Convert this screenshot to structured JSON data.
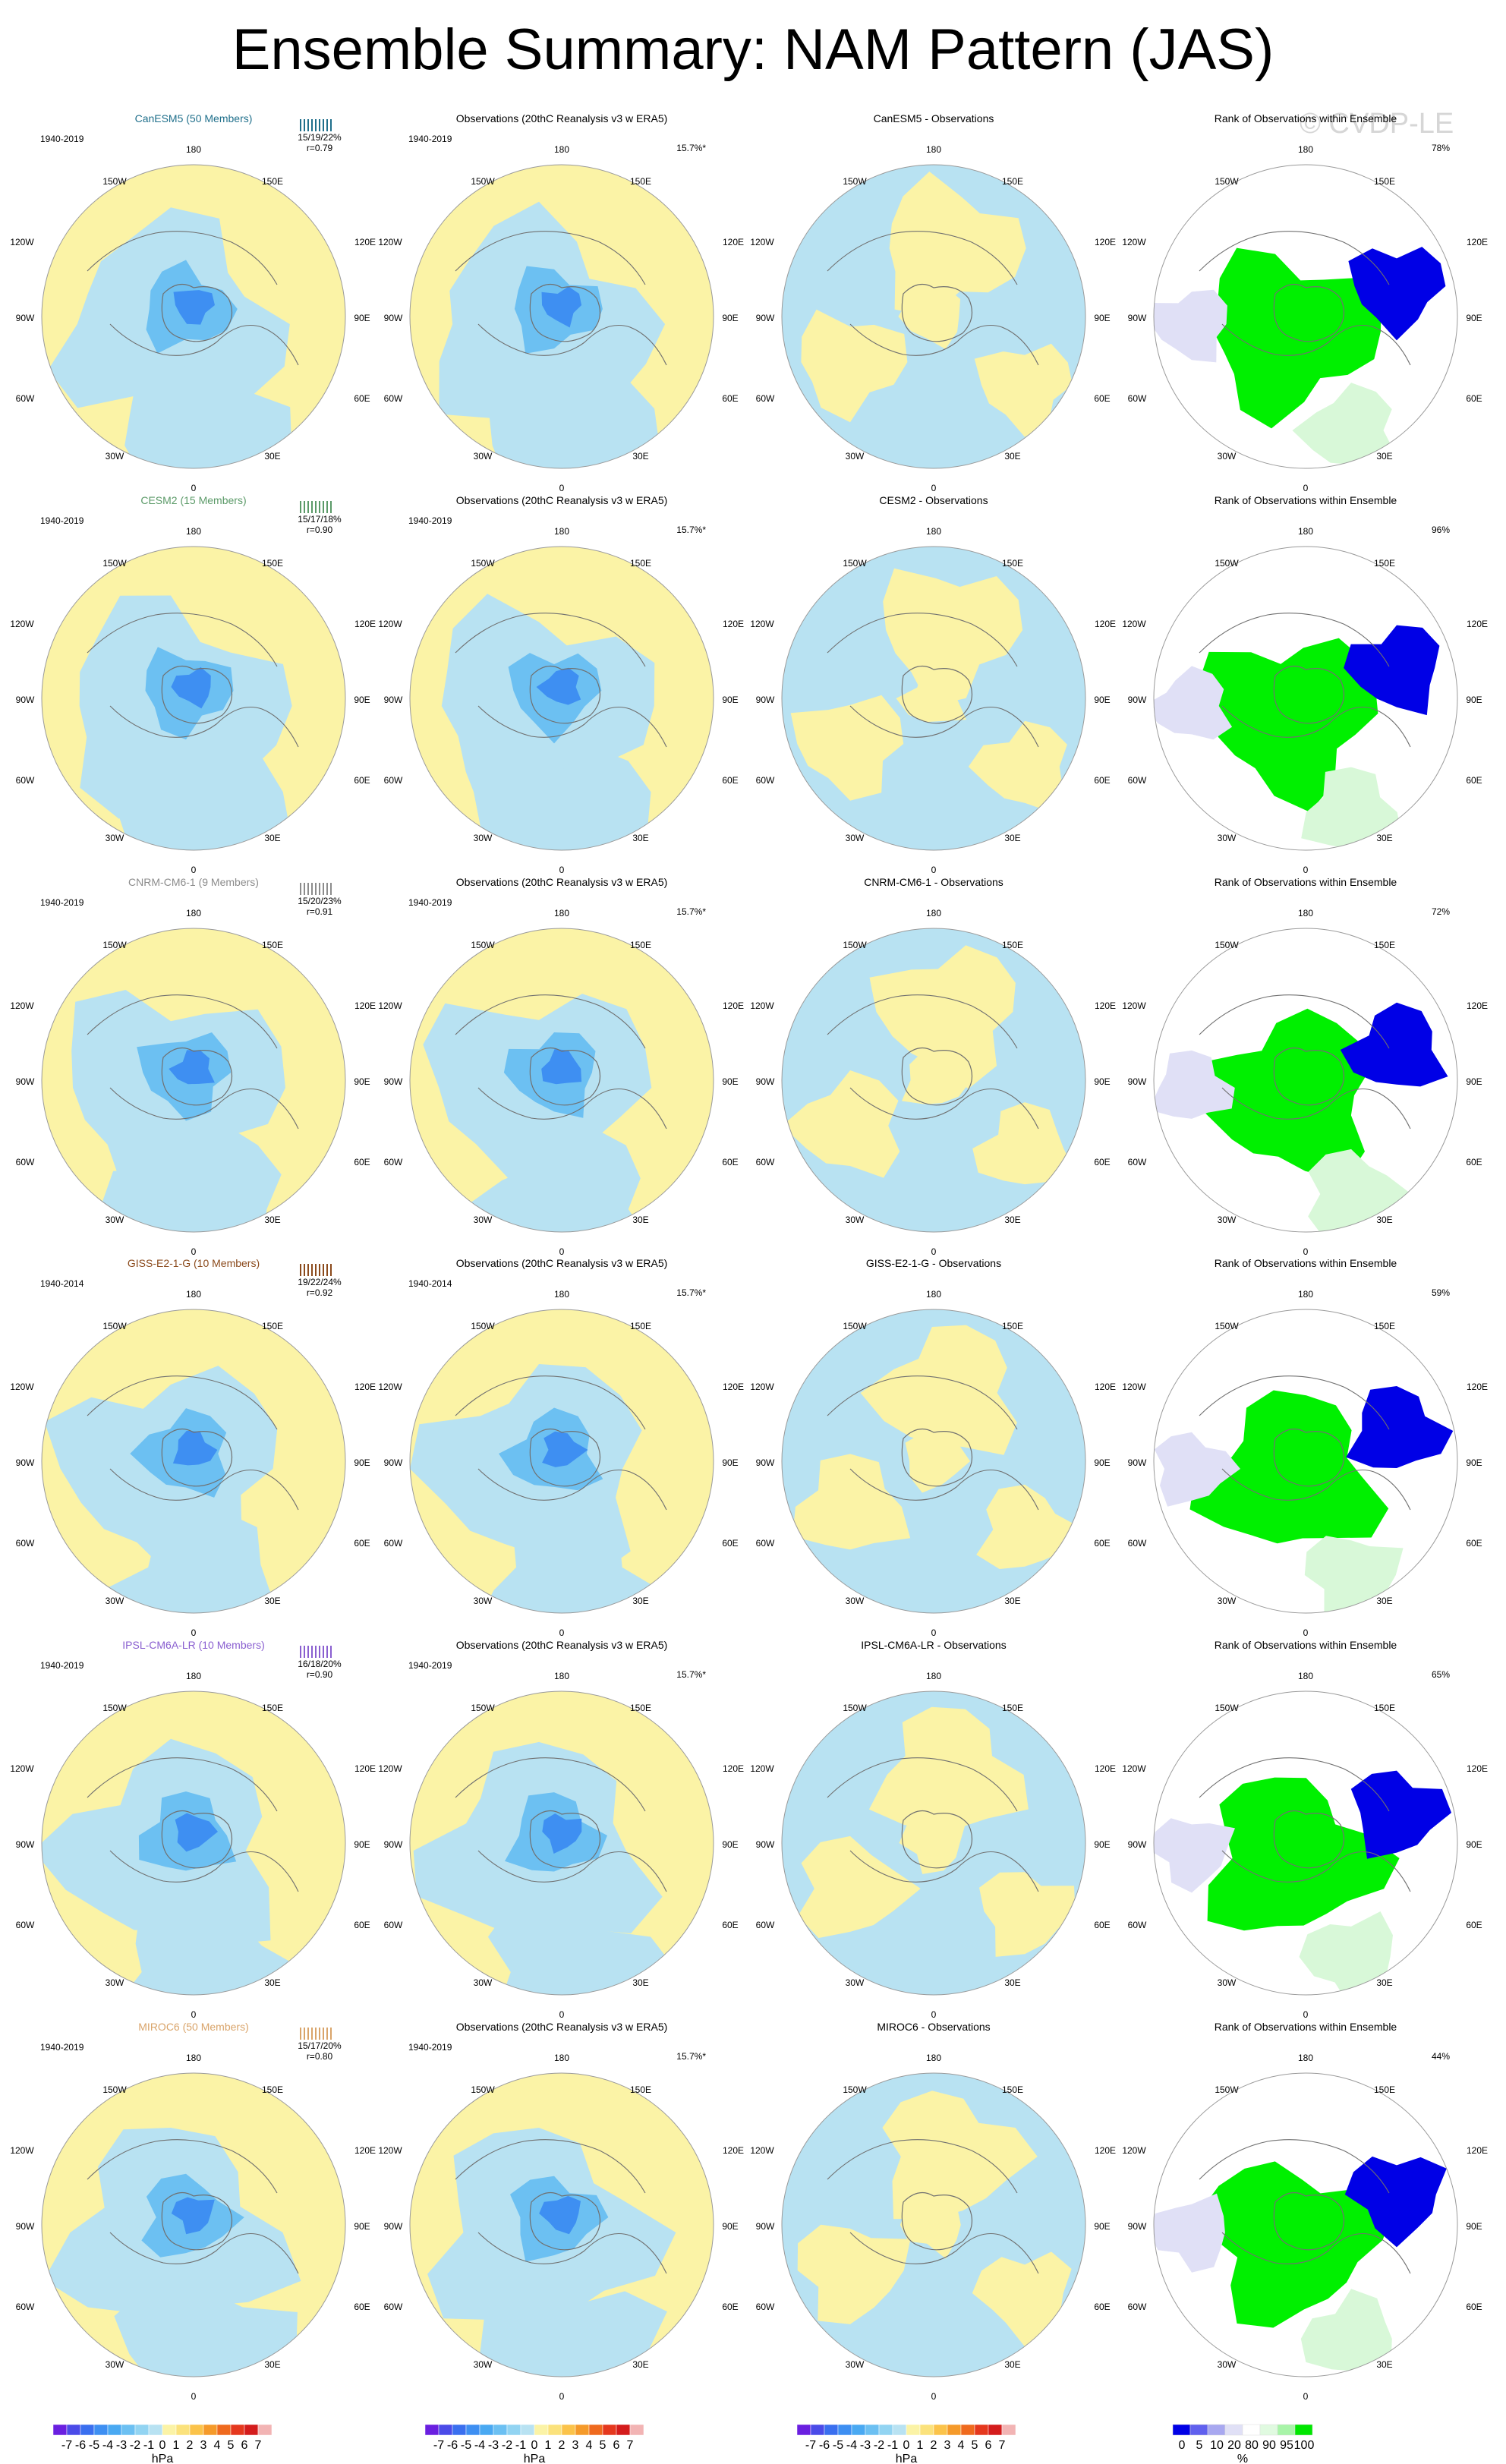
{
  "title": "Ensemble Summary: NAM Pattern (JAS)",
  "watermark": "© CVDP-LE",
  "lon_labels": {
    "top": "180",
    "bottom": "0",
    "upper_left": "150W",
    "upper_right": "150E",
    "mid_upper_left": "120W",
    "mid_upper_right": "120E",
    "left": "90W",
    "right": "90E",
    "mid_lower_left": "60W",
    "mid_lower_right": "60E",
    "lower_left": "30W",
    "lower_right": "30E"
  },
  "rows": [
    {
      "model": "CanESM5 (50 Members)",
      "model_color": "#1f6f8b",
      "model_stats": "15/19/22%",
      "model_r": "r=0.79",
      "period": "1940-2019",
      "obs_title": "Observations (20thC Reanalysis v3 w ERA5)",
      "obs_period": "1940-2019",
      "obs_pct": "15.7%*",
      "diff_title": "CanESM5 - Observations",
      "rank_title": "Rank of Observations within Ensemble",
      "rank_pct": "78%"
    },
    {
      "model": "CESM2 (15 Members)",
      "model_color": "#5b9a68",
      "model_stats": "15/17/18%",
      "model_r": "r=0.90",
      "period": "1940-2019",
      "obs_title": "Observations (20thC Reanalysis v3 w ERA5)",
      "obs_period": "1940-2019",
      "obs_pct": "15.7%*",
      "diff_title": "CESM2 - Observations",
      "rank_title": "Rank of Observations within Ensemble",
      "rank_pct": "96%"
    },
    {
      "model": "CNRM-CM6-1 (9 Members)",
      "model_color": "#8c8c8c",
      "model_stats": "15/20/23%",
      "model_r": "r=0.91",
      "period": "1940-2019",
      "obs_title": "Observations (20thC Reanalysis v3 w ERA5)",
      "obs_period": "1940-2019",
      "obs_pct": "15.7%*",
      "diff_title": "CNRM-CM6-1 - Observations",
      "rank_title": "Rank of Observations within Ensemble",
      "rank_pct": "72%"
    },
    {
      "model": "GISS-E2-1-G (10 Members)",
      "model_color": "#8b4a1c",
      "model_stats": "19/22/24%",
      "model_r": "r=0.92",
      "period": "1940-2014",
      "obs_title": "Observations (20thC Reanalysis v3 w ERA5)",
      "obs_period": "1940-2014",
      "obs_pct": "15.7%*",
      "diff_title": "GISS-E2-1-G - Observations",
      "rank_title": "Rank of Observations within Ensemble",
      "rank_pct": "59%"
    },
    {
      "model": "IPSL-CM6A-LR (10 Members)",
      "model_color": "#8a5fd0",
      "model_stats": "16/18/20%",
      "model_r": "r=0.90",
      "period": "1940-2019",
      "obs_title": "Observations (20thC Reanalysis v3 w ERA5)",
      "obs_period": "1940-2019",
      "obs_pct": "15.7%*",
      "diff_title": "IPSL-CM6A-LR - Observations",
      "rank_title": "Rank of Observations within Ensemble",
      "rank_pct": "65%"
    },
    {
      "model": "MIROC6 (50 Members)",
      "model_color": "#d9a46a",
      "model_stats": "15/17/20%",
      "model_r": "r=0.80",
      "period": "1940-2019",
      "obs_title": "Observations (20thC Reanalysis v3 w ERA5)",
      "obs_period": "1940-2019",
      "obs_pct": "15.7%*",
      "diff_title": "MIROC6 - Observations",
      "rank_title": "Rank of Observations within Ensemble",
      "rank_pct": "44%"
    }
  ],
  "colorbar_hpa": {
    "labels": [
      "-7",
      "-6",
      "-5",
      "-4",
      "-3",
      "-2",
      "-1",
      "0",
      "1",
      "2",
      "3",
      "4",
      "5",
      "6",
      "7"
    ],
    "colors": [
      "#6a1fe0",
      "#4b4be8",
      "#3a6fef",
      "#3e8ff2",
      "#4aa9f2",
      "#6cc0f2",
      "#92d4f2",
      "#b8e2f2",
      "#fbf3a6",
      "#fbe27c",
      "#fbc34a",
      "#f59a2a",
      "#ef6a1e",
      "#e5381e",
      "#d41c1c",
      "#f2b4b4"
    ],
    "unit": "hPa"
  },
  "colorbar_rank": {
    "labels": [
      "0",
      "5",
      "10",
      "20",
      "80",
      "90",
      "95",
      "100"
    ],
    "colors": [
      "#0000e6",
      "#6060ee",
      "#a8a8f0",
      "#e0e0f6",
      "#ffffff",
      "#e0fae0",
      "#a8f4a8",
      "#00e600"
    ],
    "unit": "%"
  },
  "palette": {
    "neg_light": "#b8e2f2",
    "pos_light": "#fbf3a6",
    "neg_mid": "#6cc0f2",
    "neg_strong": "#3e8ff2",
    "neg_deep": "#3a3ae0",
    "pos_mid": "#fbc34a",
    "rank_low": "#0000e6",
    "rank_mid_low": "#e0e0f6",
    "rank_high": "#00f000",
    "rank_mid_high": "#d8f8d8",
    "coast": "#707070",
    "rim": "#9a9a9a"
  }
}
